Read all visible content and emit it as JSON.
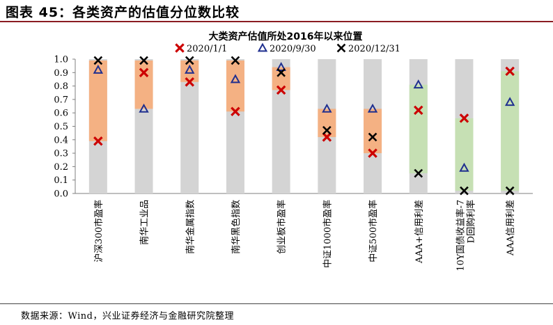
{
  "figure": {
    "title": "图表 45：各类资产的估值分位数比较",
    "source": "数据来源：Wind，兴业证券经济与金融研究院整理"
  },
  "colors": {
    "rule": "#8b1c22",
    "background_bar": "#d4d4d4",
    "range_orange": "#f4b183",
    "range_green": "#c6e0b4",
    "series_2020_1_1": "#cc0000",
    "series_2020_9_30": "#1f2f8f",
    "series_2020_12_31": "#000000"
  },
  "chart_data": {
    "type": "range-marker",
    "title": "大类资产估值所处2016年以来位置",
    "ylim": [
      0,
      1
    ],
    "ytick_labels": [
      "0.0",
      "0.1",
      "0.2",
      "0.3",
      "0.4",
      "0.5",
      "0.6",
      "0.7",
      "0.8",
      "0.9",
      "1.0"
    ],
    "categories": [
      {
        "label": "沪深300市盈率",
        "range_color": "orange"
      },
      {
        "label": "南华工业品",
        "range_color": "orange"
      },
      {
        "label": "南华金属指数",
        "range_color": "orange"
      },
      {
        "label": "南华黑色指数",
        "range_color": "orange"
      },
      {
        "label": "创业板市盈率",
        "range_color": "orange"
      },
      {
        "label": "中证1000市盈率",
        "range_color": "orange"
      },
      {
        "label": "中证500市盈率",
        "range_color": "orange"
      },
      {
        "label": "AAA+信用利差",
        "range_color": "green"
      },
      {
        "label": "10Y国债收益率-7D回购利率",
        "range_color": "green"
      },
      {
        "label": "AAA信用利差",
        "range_color": "green"
      }
    ],
    "series": [
      {
        "name": "2020/1/1",
        "marker": "x-bold",
        "color_key": "series_2020_1_1",
        "values": [
          0.39,
          0.9,
          0.83,
          0.61,
          0.77,
          0.42,
          0.3,
          0.62,
          0.56,
          0.91
        ]
      },
      {
        "name": "2020/9/30",
        "marker": "triangle-open",
        "color_key": "series_2020_9_30",
        "values": [
          0.92,
          0.63,
          0.92,
          0.85,
          0.94,
          0.63,
          0.63,
          0.81,
          0.19,
          0.68
        ]
      },
      {
        "name": "2020/12/31",
        "marker": "x",
        "color_key": "series_2020_12_31",
        "values": [
          0.99,
          0.99,
          0.99,
          0.99,
          0.9,
          0.47,
          0.42,
          0.15,
          0.02,
          0.02
        ]
      }
    ]
  }
}
